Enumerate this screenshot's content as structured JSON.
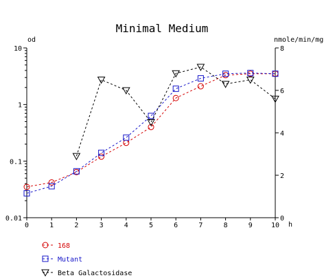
{
  "chart_data": {
    "type": "line",
    "title": "Minimal Medium",
    "xlabel": "h",
    "ylabel_left": "od",
    "ylabel_right": "nmole/min/mg",
    "left_axis": {
      "scale": "log",
      "range": [
        0.01,
        10
      ],
      "ticks": [
        0.01,
        0.1,
        1,
        10
      ],
      "tick_labels": [
        "0.01",
        "0.1",
        "1",
        "10"
      ]
    },
    "right_axis": {
      "scale": "linear",
      "range": [
        0,
        8
      ],
      "ticks": [
        0,
        2,
        4,
        6,
        8
      ],
      "tick_labels": [
        "0",
        "2",
        "4",
        "6",
        "8"
      ]
    },
    "x_axis": {
      "range": [
        0,
        10
      ],
      "ticks": [
        0,
        1,
        2,
        3,
        4,
        5,
        6,
        7,
        8,
        9,
        10
      ],
      "tick_labels": [
        "0",
        "1",
        "2",
        "3",
        "4",
        "5",
        "6",
        "7",
        "8",
        "9",
        "10"
      ]
    },
    "legend_placement": "bottom-left",
    "grid": false,
    "series": [
      {
        "name": "168",
        "axis": "left",
        "marker": "circle",
        "color": "#d40000",
        "x": [
          0,
          1,
          2,
          3,
          4,
          5,
          6,
          7,
          8,
          9,
          10
        ],
        "y": [
          0.035,
          0.042,
          0.064,
          0.12,
          0.21,
          0.4,
          1.3,
          2.1,
          3.3,
          3.5,
          3.5
        ]
      },
      {
        "name": "Mutant",
        "axis": "left",
        "marker": "square",
        "color": "#1414c8",
        "x": [
          0,
          1,
          2,
          3,
          4,
          5,
          6,
          7,
          8,
          9,
          10
        ],
        "y": [
          0.027,
          0.036,
          0.066,
          0.14,
          0.26,
          0.63,
          1.9,
          2.9,
          3.5,
          3.6,
          3.5
        ]
      },
      {
        "name": "Beta Galactosidase",
        "axis": "right",
        "marker": "triangle-down",
        "color": "#000000",
        "x": [
          2,
          3,
          4,
          5,
          6,
          7,
          8,
          9,
          10
        ],
        "y": [
          2.9,
          6.5,
          6.0,
          4.5,
          6.8,
          7.1,
          6.3,
          6.5,
          5.6
        ]
      }
    ]
  }
}
